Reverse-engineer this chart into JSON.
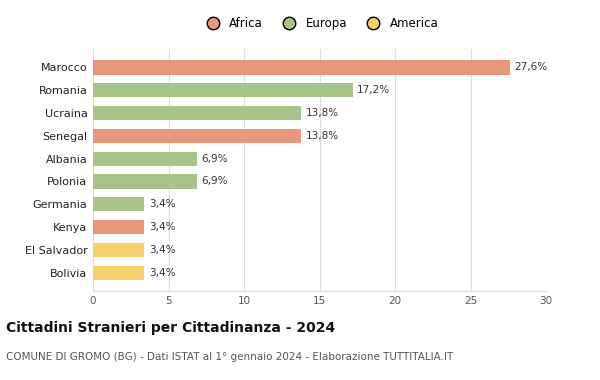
{
  "categories": [
    "Bolivia",
    "El Salvador",
    "Kenya",
    "Germania",
    "Polonia",
    "Albania",
    "Senegal",
    "Ucraina",
    "Romania",
    "Marocco"
  ],
  "values": [
    3.4,
    3.4,
    3.4,
    3.4,
    6.9,
    6.9,
    13.8,
    13.8,
    17.2,
    27.6
  ],
  "labels": [
    "3,4%",
    "3,4%",
    "3,4%",
    "3,4%",
    "6,9%",
    "6,9%",
    "13,8%",
    "13,8%",
    "17,2%",
    "27,6%"
  ],
  "colors": [
    "#f5d06b",
    "#f5d06b",
    "#e8977a",
    "#a8c48a",
    "#a8c48a",
    "#a8c48a",
    "#e8977a",
    "#a8c48a",
    "#a8c48a",
    "#e8977a"
  ],
  "legend": [
    {
      "label": "Africa",
      "color": "#e8977a"
    },
    {
      "label": "Europa",
      "color": "#a8c48a"
    },
    {
      "label": "America",
      "color": "#f5d06b"
    }
  ],
  "xlim": [
    0,
    30
  ],
  "xticks": [
    0,
    5,
    10,
    15,
    20,
    25,
    30
  ],
  "title": "Cittadini Stranieri per Cittadinanza - 2024",
  "subtitle": "COMUNE DI GROMO (BG) - Dati ISTAT al 1° gennaio 2024 - Elaborazione TUTTITALIA.IT",
  "title_fontsize": 10,
  "subtitle_fontsize": 7.5,
  "background_color": "#ffffff",
  "grid_color": "#dddddd",
  "bar_height": 0.62
}
